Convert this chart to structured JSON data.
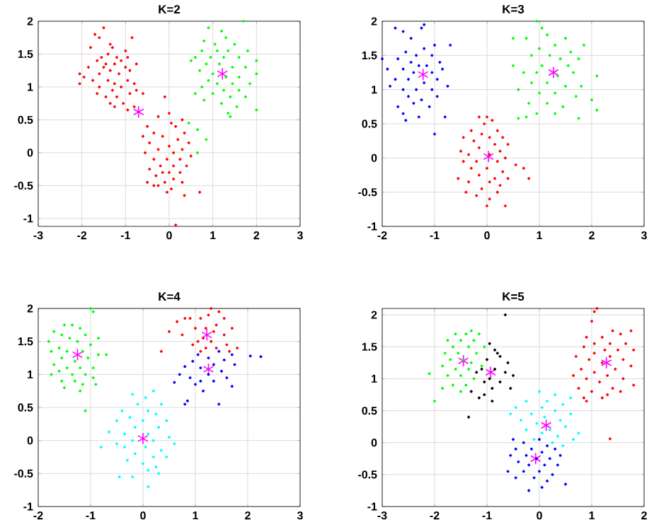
{
  "chart_data": [
    {
      "type": "scatter",
      "title": "K=2",
      "xlim": [
        -3,
        3
      ],
      "ylim": [
        -1.12,
        2
      ],
      "xticks": [
        -3,
        -2,
        -1,
        0,
        1,
        2,
        3
      ],
      "yticks": [
        -1,
        -0.5,
        0,
        0.5,
        1,
        1.5,
        2
      ],
      "grid": true,
      "marker": "circle",
      "series": [
        {
          "color": "#ff0000",
          "x": [
            -1.5,
            -1.7,
            -1.6,
            -0.85,
            -1.8,
            -1.35,
            -1.3,
            -1.0,
            -1.4,
            -1.2,
            -1.55,
            -0.95,
            -1.65,
            -1.45,
            -1.1,
            -1.25,
            -0.75,
            -1.85,
            -1.5,
            -1.35,
            -1.0,
            -2.05,
            -1.95,
            -1.6,
            -1.15,
            -0.9,
            -1.75,
            -1.4,
            -1.25,
            -0.95,
            -0.8,
            -2.05,
            -1.6,
            -1.3,
            -1.1,
            -0.75,
            -1.65,
            -1.45,
            -1.2,
            -0.9,
            -1.35,
            -1.05,
            -0.8,
            -1.25,
            -0.95,
            -0.6,
            -0.1,
            0.0,
            -0.25,
            0.3,
            0.05,
            -0.5,
            0.15,
            -0.35,
            0.35,
            -0.6,
            -0.15,
            0.2,
            0.45,
            -0.45,
            0.0,
            -0.25,
            0.3,
            -0.55,
            0.1,
            0.5,
            -0.35,
            -0.05,
            0.25,
            -0.2,
            0.1,
            0.4,
            -0.45,
            -0.15,
            0.0,
            0.25,
            -0.3,
            0.1,
            -0.1,
            0.3,
            -0.5,
            -0.25,
            0.05,
            -0.05,
            0.35,
            0.7,
            0.15,
            -0.35
          ],
          "values": [
            1.9,
            1.8,
            1.75,
            1.75,
            1.6,
            1.65,
            1.6,
            1.55,
            1.5,
            1.45,
            1.45,
            1.45,
            1.4,
            1.35,
            1.4,
            1.35,
            1.35,
            1.3,
            1.3,
            1.25,
            1.3,
            1.2,
            1.15,
            1.2,
            1.2,
            1.25,
            1.1,
            1.1,
            1.05,
            1.1,
            1.05,
            1.05,
            1.0,
            0.95,
            1.0,
            0.95,
            0.9,
            0.85,
            0.85,
            0.9,
            0.75,
            0.75,
            0.7,
            0.7,
            0.65,
            0.9,
            0.85,
            0.6,
            0.55,
            0.5,
            0.45,
            0.4,
            0.4,
            0.3,
            0.3,
            0.25,
            0.25,
            0.2,
            0.15,
            0.15,
            0.1,
            0.05,
            0.05,
            0.0,
            0.0,
            -0.05,
            -0.1,
            -0.1,
            -0.1,
            -0.2,
            -0.2,
            -0.2,
            -0.25,
            -0.3,
            -0.3,
            -0.3,
            -0.35,
            -0.4,
            -0.45,
            -0.45,
            -0.45,
            -0.5,
            -0.55,
            -0.6,
            -0.65,
            -0.6,
            -1.1,
            -0.5
          ]
        },
        {
          "color": "#00ff00",
          "x": [
            1.7,
            0.9,
            1.2,
            1.3,
            0.8,
            1.05,
            1.5,
            0.75,
            1.1,
            1.35,
            1.8,
            0.6,
            0.95,
            1.25,
            1.6,
            2.0,
            0.5,
            0.85,
            1.15,
            1.45,
            1.75,
            0.7,
            1.0,
            1.3,
            1.6,
            2.0,
            0.9,
            1.1,
            1.45,
            1.85,
            0.75,
            1.25,
            1.6,
            0.6,
            1.0,
            1.4,
            1.75,
            0.8,
            1.2,
            1.55,
            2.0,
            1.35,
            1.4,
            0.45,
            0.65,
            0.85,
            0.65
          ],
          "values": [
            2.0,
            1.9,
            1.85,
            1.75,
            1.7,
            1.65,
            1.65,
            1.55,
            1.55,
            1.55,
            1.55,
            1.45,
            1.45,
            1.45,
            1.45,
            1.4,
            1.4,
            1.35,
            1.35,
            1.3,
            1.3,
            1.25,
            1.2,
            1.15,
            1.15,
            1.2,
            1.1,
            1.05,
            1.05,
            1.05,
            1.0,
            0.95,
            0.95,
            0.9,
            0.9,
            0.85,
            0.85,
            0.8,
            0.75,
            0.7,
            0.65,
            0.6,
            0.55,
            0.45,
            0.35,
            0.2,
            0.0
          ]
        },
        {
          "color": "#ff00ff",
          "marker": "cross",
          "x": [
            -0.7,
            1.22
          ],
          "values": [
            0.62,
            1.2
          ]
        }
      ]
    },
    {
      "type": "scatter",
      "title": "K=3",
      "xlim": [
        -2,
        3
      ],
      "ylim": [
        -1,
        2
      ],
      "xticks": [
        -2,
        -1,
        0,
        1,
        2,
        3
      ],
      "yticks": [
        -1,
        -0.5,
        0,
        0.5,
        1,
        1.5,
        2
      ],
      "grid": true,
      "marker": "circle",
      "series": [
        {
          "color": "#0000ff",
          "x": [
            -1.2,
            -1.25,
            -1.75,
            -1.6,
            -1.45,
            -1.0,
            -0.7,
            -1.2,
            -1.55,
            -1.35,
            -1.05,
            -2.0,
            -1.7,
            -1.45,
            -0.9,
            -1.3,
            -1.15,
            -1.9,
            -1.6,
            -0.85,
            -1.4,
            -1.05,
            -1.75,
            -1.5,
            -1.2,
            -0.95,
            -0.75,
            -1.85,
            -1.6,
            -1.35,
            -1.05,
            -1.5,
            -1.25,
            -0.95,
            -1.7,
            -1.4,
            -1.1,
            -1.6,
            -1.3,
            -1.55,
            -0.8,
            -1.0
          ],
          "values": [
            1.95,
            1.9,
            1.9,
            1.85,
            1.75,
            1.65,
            1.65,
            1.6,
            1.55,
            1.5,
            1.5,
            1.45,
            1.45,
            1.4,
            1.4,
            1.35,
            1.35,
            1.3,
            1.3,
            1.3,
            1.25,
            1.25,
            1.15,
            1.15,
            1.1,
            1.15,
            1.05,
            1.05,
            1.0,
            1.0,
            1.0,
            0.9,
            0.85,
            0.9,
            0.75,
            0.8,
            0.75,
            0.65,
            0.6,
            0.55,
            0.6,
            0.35
          ]
        },
        {
          "color": "#00ff00",
          "x": [
            0.95,
            1.05,
            1.15,
            1.5,
            0.5,
            0.75,
            1.3,
            1.85,
            1.0,
            1.6,
            0.85,
            1.2,
            1.4,
            1.75,
            0.5,
            1.05,
            1.55,
            0.7,
            0.95,
            1.35,
            1.65,
            2.1,
            0.85,
            1.15,
            1.5,
            1.8,
            0.6,
            1.0,
            1.3,
            1.7,
            2.0,
            0.8,
            1.15,
            1.45,
            2.1,
            0.95,
            1.3,
            0.75,
            0.6,
            1.75
          ],
          "values": [
            2.0,
            1.9,
            1.8,
            1.75,
            1.75,
            1.75,
            1.65,
            1.65,
            1.6,
            1.55,
            1.5,
            1.5,
            1.45,
            1.45,
            1.35,
            1.35,
            1.35,
            1.25,
            1.25,
            1.2,
            1.25,
            1.2,
            1.1,
            1.1,
            1.05,
            1.05,
            1.0,
            0.95,
            0.95,
            0.9,
            0.85,
            0.8,
            0.8,
            0.75,
            0.7,
            0.65,
            0.65,
            0.6,
            0.58,
            0.58
          ]
        },
        {
          "color": "#ff0000",
          "x": [
            -0.15,
            0.0,
            -0.05,
            0.1,
            -0.3,
            0.2,
            -0.45,
            -0.1,
            0.05,
            0.3,
            -0.25,
            0.15,
            0.4,
            -0.5,
            -0.15,
            0.25,
            -0.35,
            0.05,
            0.35,
            -0.45,
            -0.2,
            0.2,
            0.55,
            -0.3,
            0.0,
            0.3,
            0.7,
            -0.55,
            -0.15,
            0.15,
            0.4,
            -0.35,
            0.05,
            0.25,
            0.8,
            -0.4,
            -0.1,
            0.2,
            -0.2,
            0.05,
            0.0,
            0.35
          ],
          "values": [
            0.6,
            0.6,
            0.5,
            0.55,
            0.4,
            0.4,
            0.3,
            0.35,
            0.3,
            0.3,
            0.25,
            0.2,
            0.2,
            0.1,
            0.15,
            0.1,
            0.05,
            0.05,
            0.0,
            -0.05,
            -0.05,
            -0.05,
            -0.1,
            -0.15,
            -0.15,
            -0.2,
            -0.15,
            -0.3,
            -0.25,
            -0.3,
            -0.3,
            -0.35,
            -0.35,
            -0.4,
            -0.3,
            -0.5,
            -0.45,
            -0.5,
            -0.55,
            -0.6,
            -0.7,
            -0.7
          ]
        },
        {
          "color": "#ff00ff",
          "marker": "cross",
          "x": [
            -1.22,
            1.27,
            0.03
          ],
          "values": [
            1.22,
            1.25,
            0.02
          ]
        }
      ]
    },
    {
      "type": "scatter",
      "title": "K=4",
      "xlim": [
        -2,
        3
      ],
      "ylim": [
        -1,
        2
      ],
      "xticks": [
        -2,
        -1,
        0,
        1,
        2,
        3
      ],
      "yticks": [
        -1,
        -0.5,
        0,
        0.5,
        1,
        1.5,
        2
      ],
      "grid": true,
      "marker": "circle",
      "series": [
        {
          "color": "#00ff00",
          "x": [
            -1.0,
            -0.95,
            -1.35,
            -1.5,
            -1.2,
            -1.7,
            -1.55,
            -1.1,
            -0.85,
            -1.4,
            -1.8,
            -1.25,
            -1.0,
            -1.6,
            -1.45,
            -1.15,
            -0.85,
            -1.75,
            -0.7,
            -1.55,
            -1.3,
            -1.05,
            -1.7,
            -1.45,
            -1.2,
            -0.95,
            -1.6,
            -1.35,
            -1.1,
            -1.75,
            -0.95,
            -1.55,
            -1.3,
            -1.15,
            -1.5,
            -0.9,
            -1.2,
            -1.1
          ],
          "values": [
            2.0,
            1.95,
            1.75,
            1.75,
            1.7,
            1.65,
            1.6,
            1.6,
            1.55,
            1.55,
            1.5,
            1.5,
            1.45,
            1.4,
            1.35,
            1.35,
            1.3,
            1.35,
            1.3,
            1.25,
            1.2,
            1.25,
            1.15,
            1.1,
            1.1,
            1.1,
            1.05,
            1.0,
            1.0,
            1.0,
            0.95,
            0.9,
            0.9,
            0.85,
            0.8,
            0.85,
            0.75,
            0.45
          ]
        },
        {
          "color": "#ff0000",
          "x": [
            1.3,
            1.45,
            0.8,
            0.9,
            1.1,
            1.25,
            1.55,
            0.65,
            1.4,
            1.7,
            1.0,
            1.2,
            0.5,
            1.35,
            1.55,
            1.15,
            0.75,
            1.3,
            1.05,
            1.6,
            1.8,
            1.2,
            0.95,
            0.35,
            1.4,
            1.1,
            1.65
          ],
          "values": [
            2.0,
            1.95,
            1.85,
            1.85,
            1.85,
            1.9,
            1.85,
            1.8,
            1.75,
            1.7,
            1.7,
            1.7,
            1.65,
            1.65,
            1.6,
            1.55,
            1.6,
            1.5,
            1.5,
            1.45,
            1.4,
            1.4,
            1.45,
            1.35,
            1.4,
            1.35,
            1.35
          ]
        },
        {
          "color": "#0000ff",
          "x": [
            1.45,
            1.7,
            1.05,
            2.05,
            2.25,
            1.25,
            1.55,
            0.95,
            1.35,
            1.75,
            0.8,
            1.1,
            1.5,
            1.25,
            0.7,
            1.6,
            0.9,
            1.1,
            1.35,
            0.6,
            1.0,
            1.7,
            1.15,
            0.85,
            0.8,
            1.45
          ],
          "values": [
            1.35,
            1.3,
            1.3,
            1.28,
            1.27,
            1.25,
            1.22,
            1.2,
            1.15,
            1.15,
            1.12,
            1.1,
            1.05,
            1.0,
            1.0,
            0.95,
            0.95,
            0.9,
            0.9,
            0.88,
            0.85,
            0.82,
            0.75,
            0.6,
            0.55,
            0.55
          ]
        },
        {
          "color": "#00ffff",
          "x": [
            -0.2,
            0.2,
            0.05,
            -0.1,
            0.35,
            -0.4,
            0.1,
            0.25,
            -0.25,
            0.45,
            -0.5,
            0.0,
            -0.15,
            0.3,
            -0.65,
            -0.35,
            0.1,
            0.5,
            -0.2,
            0.2,
            -0.5,
            0.6,
            -0.8,
            -0.35,
            0.05,
            0.35,
            -0.15,
            0.2,
            0.45,
            -0.3,
            0.0,
            0.25,
            0.1,
            -0.45,
            -0.2,
            0.3,
            0.1
          ],
          "values": [
            0.7,
            0.75,
            0.65,
            0.55,
            0.55,
            0.45,
            0.45,
            0.4,
            0.35,
            0.3,
            0.3,
            0.3,
            0.2,
            0.2,
            0.13,
            0.1,
            0.1,
            0.05,
            0.0,
            0.0,
            -0.05,
            -0.05,
            -0.1,
            -0.1,
            -0.1,
            -0.15,
            -0.2,
            -0.25,
            -0.25,
            -0.3,
            -0.35,
            -0.4,
            -0.45,
            -0.55,
            -0.55,
            -0.5,
            -0.7
          ]
        },
        {
          "color": "#ff00ff",
          "marker": "cross",
          "x": [
            -1.25,
            1.22,
            1.25,
            0.0
          ],
          "values": [
            1.3,
            1.6,
            1.08,
            0.03
          ]
        }
      ]
    },
    {
      "type": "scatter",
      "title": "K=5",
      "xlim": [
        -3,
        2
      ],
      "ylim": [
        -1,
        2.1
      ],
      "xticks": [
        -3,
        -2,
        -1,
        0,
        1,
        2
      ],
      "yticks": [
        -1,
        -0.5,
        0,
        0.5,
        1,
        1.5,
        2
      ],
      "grid": true,
      "marker": "circle",
      "series": [
        {
          "color": "#00ff00",
          "x": [
            -1.3,
            -1.6,
            -1.4,
            -1.15,
            -1.75,
            -1.5,
            -1.25,
            -1.65,
            -1.35,
            -1.05,
            -1.8,
            -1.55,
            -1.2,
            -1.7,
            -1.45,
            -1.3,
            -1.85,
            -1.6,
            -1.35,
            -1.1,
            -2.1,
            -1.75,
            -1.5,
            -1.25,
            -1.65,
            -1.4,
            -1.85,
            -1.5,
            -2.0
          ],
          "values": [
            1.75,
            1.7,
            1.7,
            1.7,
            1.6,
            1.6,
            1.6,
            1.5,
            1.5,
            1.5,
            1.4,
            1.4,
            1.4,
            1.3,
            1.3,
            1.25,
            1.2,
            1.15,
            1.15,
            1.2,
            1.08,
            1.05,
            1.05,
            1.0,
            0.9,
            0.9,
            0.85,
            0.8,
            0.65
          ]
        },
        {
          "color": "#000000",
          "x": [
            -0.65,
            -0.95,
            -0.85,
            -0.8,
            -0.75,
            -0.6,
            -1.0,
            -1.2,
            -1.1,
            -0.85,
            -0.65,
            -0.5,
            -0.95,
            -1.05,
            -0.75,
            -0.9,
            -0.55,
            -1.3,
            -1.05,
            -0.9,
            -1.15,
            -1.35
          ],
          "values": [
            2.0,
            1.55,
            1.45,
            1.4,
            1.35,
            1.25,
            1.3,
            1.1,
            1.15,
            1.15,
            1.1,
            1.05,
            1.0,
            0.95,
            0.95,
            0.85,
            0.85,
            0.8,
            0.75,
            0.65,
            0.7,
            0.4
          ]
        },
        {
          "color": "#ff0000",
          "x": [
            1.1,
            1.05,
            1.0,
            1.4,
            1.75,
            0.9,
            1.2,
            1.55,
            1.05,
            1.35,
            1.65,
            0.85,
            1.25,
            1.5,
            1.8,
            1.05,
            0.7,
            1.35,
            1.6,
            0.95,
            1.2,
            1.75,
            0.8,
            1.45,
            1.05,
            0.65,
            1.3,
            1.6,
            0.9,
            1.15,
            1.8,
            0.75,
            1.4,
            1.0,
            1.3,
            1.55,
            0.85,
            1.2,
            0.9,
            1.35
          ],
          "values": [
            2.1,
            2.05,
            1.9,
            1.75,
            1.75,
            1.65,
            1.65,
            1.7,
            1.55,
            1.55,
            1.55,
            1.5,
            1.45,
            1.45,
            1.45,
            1.4,
            1.35,
            1.35,
            1.3,
            1.3,
            1.25,
            1.2,
            1.15,
            1.15,
            1.1,
            1.05,
            1.05,
            1.0,
            1.0,
            0.95,
            0.9,
            0.85,
            0.85,
            0.8,
            0.75,
            0.8,
            0.7,
            0.7,
            0.65,
            0.06
          ]
        },
        {
          "color": "#00ffff",
          "x": [
            0.0,
            0.3,
            0.6,
            -0.25,
            0.15,
            0.45,
            -0.45,
            0.05,
            -0.55,
            0.3,
            -0.15,
            0.6,
            0.1,
            -0.35,
            0.4,
            -0.05,
            0.2,
            0.5,
            -0.25,
            0.75,
            0.05,
            0.35,
            0.65,
            -0.1,
            0.25,
            0.45
          ],
          "values": [
            0.8,
            0.75,
            0.7,
            0.65,
            0.65,
            0.6,
            0.55,
            0.55,
            0.45,
            0.5,
            0.45,
            0.45,
            0.4,
            0.35,
            0.35,
            0.3,
            0.2,
            0.25,
            0.2,
            0.15,
            0.15,
            0.1,
            0.05,
            0.05,
            0.0,
            -0.05
          ]
        },
        {
          "color": "#0000ff",
          "x": [
            -0.5,
            0.0,
            -0.3,
            0.15,
            -0.15,
            -0.45,
            0.3,
            0.05,
            -0.55,
            -0.25,
            0.4,
            -0.05,
            0.2,
            -0.4,
            0.1,
            -0.2,
            0.35,
            -0.6,
            -0.3,
            0.0,
            0.25,
            -0.45,
            -0.1,
            0.15,
            0.5,
            -0.2,
            0.05
          ],
          "values": [
            0.05,
            0.05,
            0.0,
            -0.05,
            -0.1,
            -0.1,
            -0.1,
            -0.15,
            -0.2,
            -0.2,
            -0.2,
            -0.25,
            -0.25,
            -0.3,
            -0.35,
            -0.35,
            -0.35,
            -0.45,
            -0.45,
            -0.45,
            -0.5,
            -0.55,
            -0.55,
            -0.6,
            -0.65,
            -0.75,
            -0.7
          ]
        },
        {
          "color": "#ff00ff",
          "marker": "cross",
          "x": [
            -1.45,
            -0.93,
            1.28,
            0.13,
            -0.07
          ],
          "values": [
            1.28,
            1.1,
            1.25,
            0.27,
            -0.25
          ]
        }
      ]
    }
  ]
}
